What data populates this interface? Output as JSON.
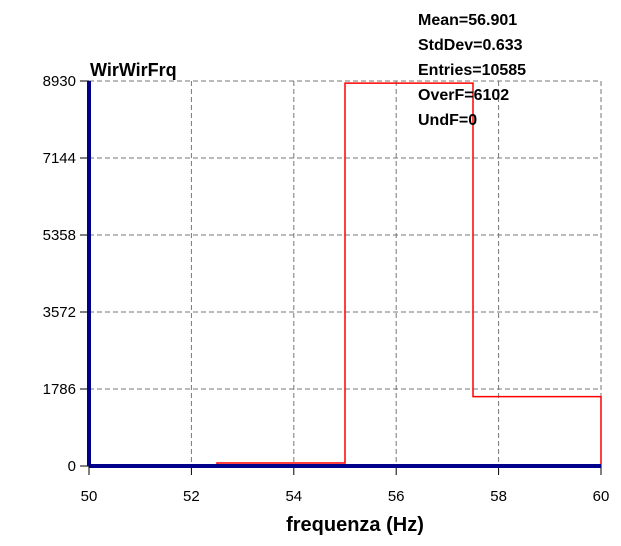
{
  "chart_data": {
    "type": "histogram",
    "title": "WirWirFrq",
    "xlabel": "frequenza (Hz)",
    "ylabel": "",
    "xlim": [
      50,
      60
    ],
    "ylim": [
      0,
      8930
    ],
    "x_ticks": [
      "50",
      "52",
      "54",
      "56",
      "58",
      "60"
    ],
    "y_ticks": [
      "0",
      "1786",
      "3572",
      "5358",
      "7144",
      "8930"
    ],
    "grid": true,
    "bins": [
      {
        "x0": 50,
        "x1": 52.5,
        "value": 25
      },
      {
        "x0": 52.5,
        "x1": 55,
        "value": 70
      },
      {
        "x0": 55,
        "x1": 57.5,
        "value": 8880
      },
      {
        "x0": 57.5,
        "x1": 60,
        "value": 1610
      }
    ],
    "stats": [
      "Mean=56.901",
      "StdDev=0.633",
      "Entries=10585",
      "OverF=6102",
      "UndF=0"
    ],
    "colors": {
      "histogram": "#ff0000",
      "axes": "#00008b",
      "grid": "#777777"
    }
  }
}
